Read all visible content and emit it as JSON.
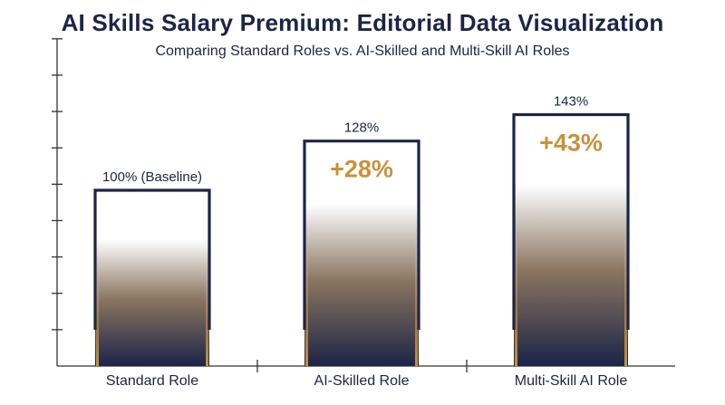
{
  "chart_data": {
    "type": "bar",
    "title": "AI Skills Salary Premium: Editorial Data Visualization",
    "subtitle": "Comparing Standard Roles vs. AI-Skilled and Multi-Skill AI Roles",
    "xlabel": "",
    "ylabel": "",
    "categories": [
      "Standard Role",
      "AI-Skilled Role",
      "Multi-Skill AI Role"
    ],
    "values": [
      100,
      128,
      143
    ],
    "value_labels": [
      "100% (Baseline)",
      "128%",
      "143%"
    ],
    "premium_labels": [
      "",
      "+28%",
      "+43%"
    ],
    "ylim": [
      0,
      180
    ],
    "y_tick_step": 20,
    "grid": false,
    "colors": {
      "bar_outline": "#1c2447",
      "bar_bottom": "#1c2447",
      "bar_mid": "#8a7560",
      "bar_top": "#ffffff",
      "bar_edge_accent": "#c8913a",
      "premium_text": "#c8913a",
      "axis": "#333333",
      "text": "#1c2447"
    }
  }
}
